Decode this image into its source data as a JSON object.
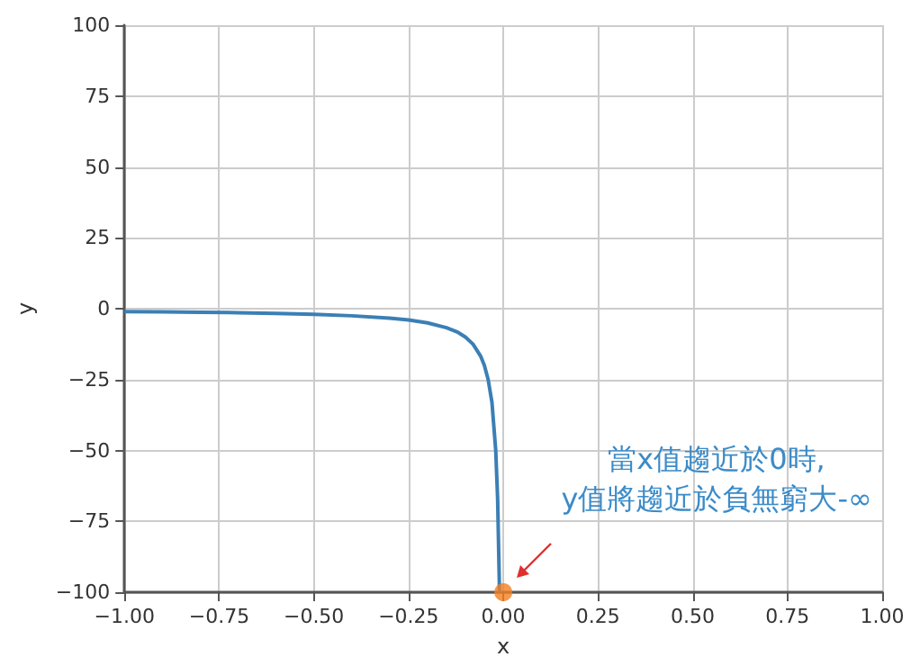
{
  "chart_data": {
    "type": "line",
    "xlabel": "x",
    "ylabel": "y",
    "xlim": [
      -1,
      1
    ],
    "xticks": [
      {
        "value": -1,
        "label": "−1.00"
      },
      {
        "value": -0.75,
        "label": "−0.75"
      },
      {
        "value": -0.5,
        "label": "−0.50"
      },
      {
        "value": -0.25,
        "label": "−0.25"
      },
      {
        "value": 0,
        "label": "0.00"
      },
      {
        "value": 0.25,
        "label": "0.25"
      },
      {
        "value": 0.5,
        "label": "0.50"
      },
      {
        "value": 0.75,
        "label": "0.75"
      },
      {
        "value": 1,
        "label": "1.00"
      }
    ],
    "ylim": [
      -100,
      100
    ],
    "yticks": [
      {
        "value": -100,
        "label": "−100"
      },
      {
        "value": -75,
        "label": "−75"
      },
      {
        "value": -50,
        "label": "−50"
      },
      {
        "value": -25,
        "label": "−25"
      },
      0,
      25,
      50,
      75,
      100
    ],
    "grid": true,
    "series": [
      {
        "marker": "none",
        "color": "#3b7fb5",
        "x": [
          -1,
          -0.9,
          -0.8,
          -0.7,
          -0.6,
          -0.5,
          -0.4,
          -0.3,
          -0.25,
          -0.2,
          -0.15,
          -0.12,
          -0.1,
          -0.08,
          -0.06,
          -0.05,
          -0.04,
          -0.03,
          -0.02,
          -0.015,
          -0.01
        ],
        "values": [
          -1,
          -1.1,
          -1.3,
          -1.4,
          -1.7,
          -2,
          -2.5,
          -3.3,
          -4,
          -5,
          -6.7,
          -8.3,
          -10,
          -12.5,
          -16.7,
          -20,
          -25,
          -33,
          -50,
          -67,
          -100
        ]
      },
      {
        "type": "scatter",
        "marker": "circle",
        "color": "#f28022",
        "x": [
          0
        ],
        "values": [
          -100
        ]
      }
    ],
    "annotations": [
      "當x值趨近於0時,\ny值將趨近於負無窮大-∞"
    ]
  }
}
